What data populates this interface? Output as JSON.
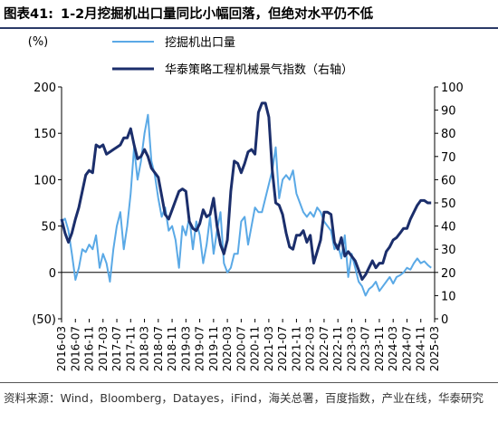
{
  "figure": {
    "number": "图表41:",
    "title": "1-2月挖掘机出口量同比小幅回落，但绝对水平仍不低"
  },
  "source_note": "资料来源：Wind，Bloomberg，Datayes，iFind，海关总署，百度指数，产业在线，华泰研究",
  "chart_data": {
    "type": "line",
    "left_axis": {
      "unit_label": "(%)",
      "range": [
        -50,
        200
      ],
      "ticks": [
        -50,
        0,
        50,
        100,
        150,
        200
      ],
      "tick_labels": [
        "(50)",
        "0",
        "50",
        "100",
        "150",
        "200"
      ]
    },
    "right_axis": {
      "range": [
        0,
        100
      ],
      "ticks": [
        0,
        10,
        20,
        30,
        40,
        50,
        60,
        70,
        80,
        90,
        100
      ],
      "tick_labels": [
        "0",
        "10",
        "20",
        "30",
        "40",
        "50",
        "60",
        "70",
        "80",
        "90",
        "100"
      ]
    },
    "x": {
      "start": "2016-03",
      "end": "2025-03",
      "tick_labels": [
        "2016-03",
        "2016-07",
        "2016-11",
        "2017-03",
        "2017-07",
        "2017-11",
        "2018-03",
        "2018-07",
        "2018-11",
        "2019-03",
        "2019-07",
        "2019-11",
        "2020-03",
        "2020-07",
        "2020-11",
        "2021-03",
        "2021-07",
        "2021-11",
        "2022-03",
        "2022-07",
        "2022-11",
        "2023-03",
        "2023-07",
        "2023-11",
        "2024-03",
        "2024-07",
        "2024-11",
        "2025-03"
      ]
    },
    "grid": false,
    "legend": "top-center",
    "series": [
      {
        "name": "挖掘机出口量",
        "axis": "left",
        "color": "#5aa9e6",
        "points": [
          [
            "2016-03",
            55
          ],
          [
            "2016-04",
            58
          ],
          [
            "2016-05",
            45
          ],
          [
            "2016-06",
            20
          ],
          [
            "2016-07",
            -8
          ],
          [
            "2016-08",
            5
          ],
          [
            "2016-09",
            25
          ],
          [
            "2016-10",
            22
          ],
          [
            "2016-11",
            30
          ],
          [
            "2016-12",
            25
          ],
          [
            "2017-01",
            40
          ],
          [
            "2017-02",
            5
          ],
          [
            "2017-03",
            20
          ],
          [
            "2017-04",
            10
          ],
          [
            "2017-05",
            -10
          ],
          [
            "2017-06",
            25
          ],
          [
            "2017-07",
            50
          ],
          [
            "2017-08",
            65
          ],
          [
            "2017-09",
            25
          ],
          [
            "2017-10",
            50
          ],
          [
            "2017-11",
            85
          ],
          [
            "2017-12",
            135
          ],
          [
            "2018-01",
            100
          ],
          [
            "2018-02",
            120
          ],
          [
            "2018-03",
            150
          ],
          [
            "2018-04",
            170
          ],
          [
            "2018-05",
            120
          ],
          [
            "2018-06",
            105
          ],
          [
            "2018-07",
            80
          ],
          [
            "2018-08",
            60
          ],
          [
            "2018-09",
            70
          ],
          [
            "2018-10",
            45
          ],
          [
            "2018-11",
            50
          ],
          [
            "2018-12",
            35
          ],
          [
            "2019-01",
            5
          ],
          [
            "2019-02",
            50
          ],
          [
            "2019-03",
            40
          ],
          [
            "2019-04",
            60
          ],
          [
            "2019-05",
            25
          ],
          [
            "2019-06",
            55
          ],
          [
            "2019-07",
            40
          ],
          [
            "2019-08",
            10
          ],
          [
            "2019-09",
            30
          ],
          [
            "2019-10",
            60
          ],
          [
            "2019-11",
            20
          ],
          [
            "2019-12",
            45
          ],
          [
            "2020-01",
            65
          ],
          [
            "2020-02",
            10
          ],
          [
            "2020-03",
            0
          ],
          [
            "2020-04",
            5
          ],
          [
            "2020-05",
            20
          ],
          [
            "2020-06",
            20
          ],
          [
            "2020-07",
            55
          ],
          [
            "2020-08",
            60
          ],
          [
            "2020-09",
            30
          ],
          [
            "2020-10",
            50
          ],
          [
            "2020-11",
            70
          ],
          [
            "2020-12",
            65
          ],
          [
            "2021-01",
            65
          ],
          [
            "2021-02",
            80
          ],
          [
            "2021-03",
            95
          ],
          [
            "2021-04",
            110
          ],
          [
            "2021-05",
            135
          ],
          [
            "2021-06",
            80
          ],
          [
            "2021-07",
            100
          ],
          [
            "2021-08",
            105
          ],
          [
            "2021-09",
            100
          ],
          [
            "2021-10",
            110
          ],
          [
            "2021-11",
            85
          ],
          [
            "2021-12",
            75
          ],
          [
            "2022-01",
            65
          ],
          [
            "2022-02",
            60
          ],
          [
            "2022-03",
            65
          ],
          [
            "2022-04",
            60
          ],
          [
            "2022-05",
            70
          ],
          [
            "2022-06",
            65
          ],
          [
            "2022-07",
            55
          ],
          [
            "2022-08",
            50
          ],
          [
            "2022-09",
            45
          ],
          [
            "2022-10",
            25
          ],
          [
            "2022-11",
            30
          ],
          [
            "2022-12",
            15
          ],
          [
            "2023-01",
            40
          ],
          [
            "2023-02",
            -5
          ],
          [
            "2023-03",
            20
          ],
          [
            "2023-04",
            5
          ],
          [
            "2023-05",
            -10
          ],
          [
            "2023-06",
            -15
          ],
          [
            "2023-07",
            -25
          ],
          [
            "2023-08",
            -18
          ],
          [
            "2023-09",
            -15
          ],
          [
            "2023-10",
            -10
          ],
          [
            "2023-11",
            -20
          ],
          [
            "2023-12",
            -15
          ],
          [
            "2024-01",
            -10
          ],
          [
            "2024-02",
            -5
          ],
          [
            "2024-03",
            -12
          ],
          [
            "2024-04",
            -5
          ],
          [
            "2024-05",
            -3
          ],
          [
            "2024-06",
            0
          ],
          [
            "2024-07",
            5
          ],
          [
            "2024-08",
            3
          ],
          [
            "2024-09",
            10
          ],
          [
            "2024-10",
            15
          ],
          [
            "2024-11",
            10
          ],
          [
            "2024-12",
            12
          ],
          [
            "2025-01",
            8
          ],
          [
            "2025-02",
            5
          ]
        ]
      },
      {
        "name": "华泰策略工程机械景气指数（右轴）",
        "axis": "right",
        "color": "#1b2e6b",
        "points": [
          [
            "2016-03",
            43
          ],
          [
            "2016-04",
            37
          ],
          [
            "2016-05",
            33
          ],
          [
            "2016-06",
            37
          ],
          [
            "2016-07",
            43
          ],
          [
            "2016-08",
            48
          ],
          [
            "2016-09",
            55
          ],
          [
            "2016-10",
            62
          ],
          [
            "2016-11",
            64
          ],
          [
            "2016-12",
            63
          ],
          [
            "2017-01",
            75
          ],
          [
            "2017-02",
            74
          ],
          [
            "2017-03",
            75
          ],
          [
            "2017-04",
            71
          ],
          [
            "2017-05",
            72
          ],
          [
            "2017-06",
            73
          ],
          [
            "2017-07",
            74
          ],
          [
            "2017-08",
            75
          ],
          [
            "2017-09",
            78
          ],
          [
            "2017-10",
            78
          ],
          [
            "2017-11",
            82
          ],
          [
            "2017-12",
            75
          ],
          [
            "2018-01",
            69
          ],
          [
            "2018-02",
            70
          ],
          [
            "2018-03",
            73
          ],
          [
            "2018-04",
            70
          ],
          [
            "2018-05",
            65
          ],
          [
            "2018-06",
            63
          ],
          [
            "2018-07",
            61
          ],
          [
            "2018-08",
            53
          ],
          [
            "2018-09",
            45
          ],
          [
            "2018-10",
            43
          ],
          [
            "2018-11",
            47
          ],
          [
            "2018-12",
            51
          ],
          [
            "2019-01",
            55
          ],
          [
            "2019-02",
            56
          ],
          [
            "2019-03",
            55
          ],
          [
            "2019-04",
            42
          ],
          [
            "2019-05",
            39
          ],
          [
            "2019-06",
            38
          ],
          [
            "2019-07",
            41
          ],
          [
            "2019-08",
            47
          ],
          [
            "2019-09",
            44
          ],
          [
            "2019-10",
            45
          ],
          [
            "2019-11",
            52
          ],
          [
            "2019-12",
            40
          ],
          [
            "2020-01",
            32
          ],
          [
            "2020-02",
            28
          ],
          [
            "2020-03",
            34
          ],
          [
            "2020-04",
            55
          ],
          [
            "2020-05",
            68
          ],
          [
            "2020-06",
            67
          ],
          [
            "2020-07",
            63
          ],
          [
            "2020-08",
            67
          ],
          [
            "2020-09",
            72
          ],
          [
            "2020-10",
            73
          ],
          [
            "2020-11",
            71
          ],
          [
            "2020-12",
            89
          ],
          [
            "2021-01",
            93
          ],
          [
            "2021-02",
            93
          ],
          [
            "2021-03",
            87
          ],
          [
            "2021-04",
            64
          ],
          [
            "2021-05",
            50
          ],
          [
            "2021-06",
            49
          ],
          [
            "2021-07",
            45
          ],
          [
            "2021-08",
            37
          ],
          [
            "2021-09",
            31
          ],
          [
            "2021-10",
            30
          ],
          [
            "2021-11",
            36
          ],
          [
            "2021-12",
            36
          ],
          [
            "2022-01",
            38
          ],
          [
            "2022-02",
            33
          ],
          [
            "2022-03",
            36
          ],
          [
            "2022-04",
            24
          ],
          [
            "2022-05",
            29
          ],
          [
            "2022-06",
            34
          ],
          [
            "2022-07",
            46
          ],
          [
            "2022-08",
            46
          ],
          [
            "2022-09",
            45
          ],
          [
            "2022-10",
            33
          ],
          [
            "2022-11",
            30
          ],
          [
            "2022-12",
            35
          ],
          [
            "2023-01",
            27
          ],
          [
            "2023-02",
            29
          ],
          [
            "2023-03",
            27
          ],
          [
            "2023-04",
            25
          ],
          [
            "2023-05",
            21
          ],
          [
            "2023-06",
            17
          ],
          [
            "2023-07",
            19
          ],
          [
            "2023-08",
            22
          ],
          [
            "2023-09",
            25
          ],
          [
            "2023-10",
            22
          ],
          [
            "2023-11",
            24
          ],
          [
            "2023-12",
            24
          ],
          [
            "2024-01",
            29
          ],
          [
            "2024-02",
            31
          ],
          [
            "2024-03",
            34
          ],
          [
            "2024-04",
            35
          ],
          [
            "2024-05",
            37
          ],
          [
            "2024-06",
            39
          ],
          [
            "2024-07",
            39
          ],
          [
            "2024-08",
            43
          ],
          [
            "2024-09",
            46
          ],
          [
            "2024-10",
            49
          ],
          [
            "2024-11",
            51
          ],
          [
            "2024-12",
            51
          ],
          [
            "2025-01",
            50
          ],
          [
            "2025-02",
            50
          ]
        ]
      }
    ]
  }
}
